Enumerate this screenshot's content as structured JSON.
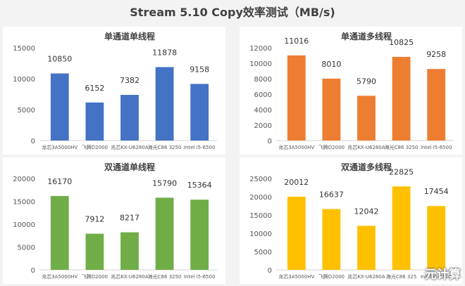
{
  "page": {
    "title": "Stream 5.10 Copy效率测试（MB/s)",
    "watermark": "元计算"
  },
  "chart_data": [
    {
      "type": "bar",
      "title": "单通道单线程",
      "categories": [
        "龙芯3A5000HV",
        "飞腾D2000",
        "兆芯KX-U6280A",
        "海光C86 3250",
        "Intel i5-6500"
      ],
      "values": [
        10850,
        6152,
        7382,
        11878,
        9158
      ],
      "ylim": [
        0,
        15000
      ],
      "yticks": [
        0,
        5000,
        10000,
        15000
      ],
      "color": "#4472c4",
      "grid": false
    },
    {
      "type": "bar",
      "title": "单通道多线程",
      "categories": [
        "龙芯3A5000HV",
        "飞腾D2000",
        "兆芯KX-U6280A",
        "海光C86 3250",
        "Intel i5-6500"
      ],
      "values": [
        11016,
        8010,
        5790,
        10825,
        9258
      ],
      "ylim": [
        0,
        12000
      ],
      "yticks": [
        0,
        2000,
        4000,
        6000,
        8000,
        10000,
        12000
      ],
      "color": "#ed7d31",
      "grid": false
    },
    {
      "type": "bar",
      "title": "双通道单线程",
      "categories": [
        "龙芯3A5000HV",
        "飞腾D2000",
        "兆芯KX-U6280A",
        "海光C86 3250",
        "Intel i5-6500"
      ],
      "values": [
        16170,
        7912,
        8217,
        15790,
        15364
      ],
      "ylim": [
        0,
        20000
      ],
      "yticks": [
        0,
        5000,
        10000,
        15000,
        20000
      ],
      "color": "#70ad47",
      "grid": false
    },
    {
      "type": "bar",
      "title": "双通道多线程",
      "categories": [
        "龙芯3A5000HV",
        "飞腾D2000",
        "兆芯KX-U6280A",
        "海光C86 325",
        "Intel i5-6500"
      ],
      "values": [
        20012,
        16637,
        12042,
        22825,
        17454
      ],
      "ylim": [
        0,
        25000
      ],
      "yticks": [
        0,
        5000,
        10000,
        15000,
        20000,
        25000
      ],
      "color": "#ffc000",
      "grid": false
    }
  ]
}
